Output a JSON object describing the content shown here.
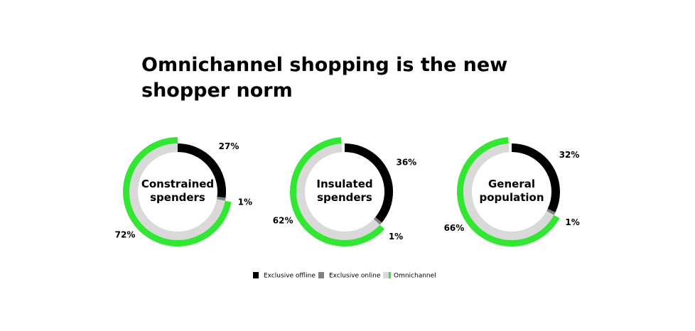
{
  "title": "Omnichannel shopping is the new shopper norm",
  "chart_data": [
    {
      "type": "donut",
      "center_label": "Constrained spenders",
      "categories": [
        "Exclusive offline",
        "Exclusive online",
        "Omnichannel"
      ],
      "values": [
        27,
        1,
        72
      ],
      "value_labels": [
        "27%",
        "1%",
        "72%"
      ],
      "colors": [
        "#000000",
        "#808080",
        "#d9d9d9"
      ],
      "accent_color": "#33e633"
    },
    {
      "type": "donut",
      "center_label": "Insulated spenders",
      "categories": [
        "Exclusive offline",
        "Exclusive online",
        "Omnichannel"
      ],
      "values": [
        36,
        1,
        62
      ],
      "value_labels": [
        "36%",
        "1%",
        "62%"
      ],
      "colors": [
        "#000000",
        "#808080",
        "#d9d9d9"
      ],
      "accent_color": "#33e633"
    },
    {
      "type": "donut",
      "center_label": "General population",
      "categories": [
        "Exclusive offline",
        "Exclusive online",
        "Omnichannel"
      ],
      "values": [
        32,
        1,
        66
      ],
      "value_labels": [
        "32%",
        "1%",
        "66%"
      ],
      "colors": [
        "#000000",
        "#808080",
        "#d9d9d9"
      ],
      "accent_color": "#33e633"
    }
  ]
}
